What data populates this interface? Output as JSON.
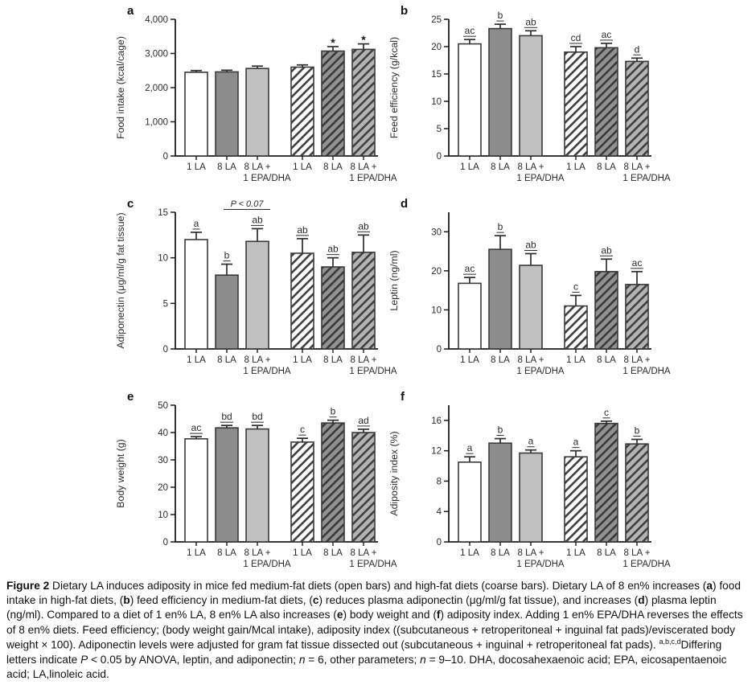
{
  "figure": {
    "label": "Figure 2",
    "caption_segments": [
      {
        "text": "Figure 2",
        "bold": true
      },
      {
        "text": "  Dietary LA induces adiposity in mice fed medium-fat diets (open bars) and high-fat diets (coarse bars). Dietary LA of 8 en% increases ("
      },
      {
        "text": "a",
        "bold": true
      },
      {
        "text": ") food intake in high-fat diets, ("
      },
      {
        "text": "b",
        "bold": true
      },
      {
        "text": ") feed efficiency in medium-fat diets, ("
      },
      {
        "text": "c",
        "bold": true
      },
      {
        "text": ") reduces plasma adiponectin (μg/ml/g fat tissue), and increases ("
      },
      {
        "text": "d",
        "bold": true
      },
      {
        "text": ") plasma leptin (ng/ml). Compared to a diet of 1 en% LA, 8 en% LA also increases ("
      },
      {
        "text": "e",
        "bold": true
      },
      {
        "text": ") body weight and ("
      },
      {
        "text": "f",
        "bold": true
      },
      {
        "text": ") adiposity index. Adding 1 en% EPA/DHA reverses the effects of 8 en% diets. Feed efficiency; (body weight gain/Mcal intake), adiposity index ((subcutaneous + retroperitoneal + inguinal fat pads)/eviscerated body weight × 100). Adiponectin levels were adjusted for gram fat tissue dissected out (subcutaneous + inguinal + retroperitoneal fat pads). "
      },
      {
        "text": "a,b,c,d",
        "sup": true
      },
      {
        "text": "Differing letters indicate "
      },
      {
        "text": "P",
        "italic": true
      },
      {
        "text": " < 0.05 by ANOVA, leptin, and adiponectin; "
      },
      {
        "text": "n",
        "italic": true
      },
      {
        "text": " = 6, other parameters; "
      },
      {
        "text": "n",
        "italic": true
      },
      {
        "text": " = 9–10. DHA, docosahexaenoic acid; EPA, eicosapentaenoic acid; LA,linoleic acid."
      }
    ]
  },
  "legend_semantics": {
    "open_bars": "medium-fat diets",
    "coarse_bars": "high-fat diets"
  },
  "colors": {
    "bar_open": "#ffffff",
    "bar_dark": "#8c8c8c",
    "bar_light": "#c0c0c0",
    "hatch_open_bg": "#ffffff",
    "hatch_dark_bg": "#919191",
    "hatch_light_bg": "#b4b4b4",
    "hatch_line": "#3f3f3f",
    "outline": "#3a3a3a",
    "axis": "#1c1c1c",
    "text": "#2b2b2b",
    "star": "#24243a"
  },
  "chart_data": [
    {
      "type": "bar",
      "panel": "a",
      "ylabel": "Food intake (kcal/cage)",
      "ylim": [
        0,
        4000
      ],
      "ytick_values": [
        0,
        1000,
        2000,
        3000,
        4000
      ],
      "ytick_labels": [
        "0",
        "1,000",
        "2,000",
        "3,000",
        "4,000"
      ],
      "categories": [
        [
          "1 LA"
        ],
        [
          "8 LA"
        ],
        [
          "8 LA +",
          "1 EPA/DHA"
        ],
        [
          "1 LA"
        ],
        [
          "8 LA"
        ],
        [
          "8 LA +",
          "1 EPA/DHA"
        ]
      ],
      "bar_styles": [
        "open",
        "dark",
        "light",
        "hatch-open",
        "hatch-dark",
        "hatch-light"
      ],
      "values": [
        2450,
        2460,
        2560,
        2600,
        3070,
        3120
      ],
      "errors": [
        50,
        50,
        70,
        65,
        130,
        160
      ],
      "sig_labels": [
        "",
        "",
        "",
        "",
        "★",
        "★"
      ],
      "sig_underline": false,
      "annotation": null,
      "grid": false,
      "legend_position": "none"
    },
    {
      "type": "bar",
      "panel": "b",
      "ylabel": "Feed efficiency (g/kcal)",
      "ylim": [
        0,
        25
      ],
      "ytick_values": [
        0,
        5,
        10,
        15,
        20,
        25
      ],
      "ytick_labels": [
        "0",
        "5",
        "10",
        "15",
        "20",
        "25"
      ],
      "categories": [
        [
          "1 LA"
        ],
        [
          "8 LA"
        ],
        [
          "8 LA +",
          "1 EPA/DHA"
        ],
        [
          "1 LA"
        ],
        [
          "8 LA"
        ],
        [
          "8 LA +",
          "1 EPA/DHA"
        ]
      ],
      "bar_styles": [
        "open",
        "dark",
        "light",
        "hatch-open",
        "hatch-dark",
        "hatch-light"
      ],
      "values": [
        20.5,
        23.3,
        22.0,
        19.0,
        19.8,
        17.3
      ],
      "errors": [
        0.8,
        0.8,
        0.9,
        1.0,
        0.8,
        0.6
      ],
      "sig_labels": [
        "ac",
        "b",
        "ab",
        "cd",
        "ac",
        "d"
      ],
      "sig_underline": true,
      "annotation": null,
      "grid": false,
      "legend_position": "none"
    },
    {
      "type": "bar",
      "panel": "c",
      "ylabel": "Adiponectin (μg/ml/g fat tissue)",
      "ylim": [
        0,
        15
      ],
      "ytick_values": [
        0,
        5,
        10,
        15
      ],
      "ytick_labels": [
        "0",
        "5",
        "10",
        "15"
      ],
      "categories": [
        [
          "1 LA"
        ],
        [
          "8 LA"
        ],
        [
          "8 LA +",
          "1 EPA/DHA"
        ],
        [
          "1 LA"
        ],
        [
          "8 LA"
        ],
        [
          "8 LA +",
          "1 EPA/DHA"
        ]
      ],
      "bar_styles": [
        "open",
        "dark",
        "light",
        "hatch-open",
        "hatch-dark",
        "hatch-light"
      ],
      "values": [
        12.0,
        8.1,
        11.8,
        10.5,
        9.0,
        10.6
      ],
      "errors": [
        0.8,
        1.2,
        1.4,
        1.6,
        1.0,
        1.9
      ],
      "sig_labels": [
        "a",
        "b",
        "ab",
        "ab",
        "ab",
        "ab"
      ],
      "sig_underline": true,
      "annotation": {
        "text": "P < 0.07",
        "italic_prefix": "P",
        "between_bars": [
          1,
          2
        ]
      },
      "grid": false,
      "legend_position": "none"
    },
    {
      "type": "bar",
      "panel": "d",
      "ylabel": "Leptin (ng/ml)",
      "ylim": [
        0,
        35
      ],
      "ytick_values": [
        0,
        10,
        20,
        30
      ],
      "ytick_labels": [
        "0",
        "10",
        "20",
        "30"
      ],
      "categories": [
        [
          "1 LA"
        ],
        [
          "8 LA"
        ],
        [
          "8 LA +",
          "1 EPA/DHA"
        ],
        [
          "1 LA"
        ],
        [
          "8 LA"
        ],
        [
          "8 LA +",
          "1 EPA/DHA"
        ]
      ],
      "bar_styles": [
        "open",
        "dark",
        "light",
        "hatch-open",
        "hatch-dark",
        "hatch-light"
      ],
      "values": [
        16.8,
        25.5,
        21.4,
        11.0,
        19.8,
        16.5
      ],
      "errors": [
        1.5,
        3.5,
        3.0,
        2.7,
        3.2,
        3.3
      ],
      "sig_labels": [
        "ac",
        "b",
        "ab",
        "c",
        "ab",
        "ac"
      ],
      "sig_underline": true,
      "annotation": null,
      "grid": false,
      "legend_position": "none"
    },
    {
      "type": "bar",
      "panel": "e",
      "ylabel": "Body weight (g)",
      "ylim": [
        0,
        50
      ],
      "ytick_values": [
        0,
        10,
        20,
        30,
        40,
        50
      ],
      "ytick_labels": [
        "0",
        "10",
        "20",
        "30",
        "40",
        "50"
      ],
      "categories": [
        [
          "1 LA"
        ],
        [
          "8 LA"
        ],
        [
          "8 LA +",
          "1 EPA/DHA"
        ],
        [
          "1 LA"
        ],
        [
          "8 LA"
        ],
        [
          "8 LA +",
          "1 EPA/DHA"
        ]
      ],
      "bar_styles": [
        "open",
        "dark",
        "light",
        "hatch-open",
        "hatch-dark",
        "hatch-light"
      ],
      "values": [
        37.7,
        41.7,
        41.3,
        36.5,
        43.5,
        40.0
      ],
      "errors": [
        0.8,
        0.9,
        1.3,
        1.4,
        1.0,
        1.2
      ],
      "sig_labels": [
        "ac",
        "bd",
        "bd",
        "c",
        "b",
        "ad"
      ],
      "sig_underline": true,
      "annotation": null,
      "grid": false,
      "legend_position": "none"
    },
    {
      "type": "bar",
      "panel": "f",
      "ylabel": "Adiposity index (%)",
      "ylim": [
        0,
        18
      ],
      "ytick_values": [
        0,
        4,
        8,
        12,
        16
      ],
      "ytick_labels": [
        "0",
        "4",
        "8",
        "12",
        "16"
      ],
      "categories": [
        [
          "1 LA"
        ],
        [
          "8 LA"
        ],
        [
          "8 LA +",
          "1 EPA/DHA"
        ],
        [
          "1 LA"
        ],
        [
          "8 LA"
        ],
        [
          "8 LA +",
          "1 EPA/DHA"
        ]
      ],
      "bar_styles": [
        "open",
        "dark",
        "light",
        "hatch-open",
        "hatch-dark",
        "hatch-light"
      ],
      "values": [
        10.5,
        13.0,
        11.7,
        11.2,
        15.6,
        12.9
      ],
      "errors": [
        0.7,
        0.6,
        0.4,
        0.8,
        0.3,
        0.6
      ],
      "sig_labels": [
        "a",
        "b",
        "a",
        "a",
        "c",
        "b"
      ],
      "sig_underline": true,
      "annotation": null,
      "grid": false,
      "legend_position": "none"
    }
  ]
}
